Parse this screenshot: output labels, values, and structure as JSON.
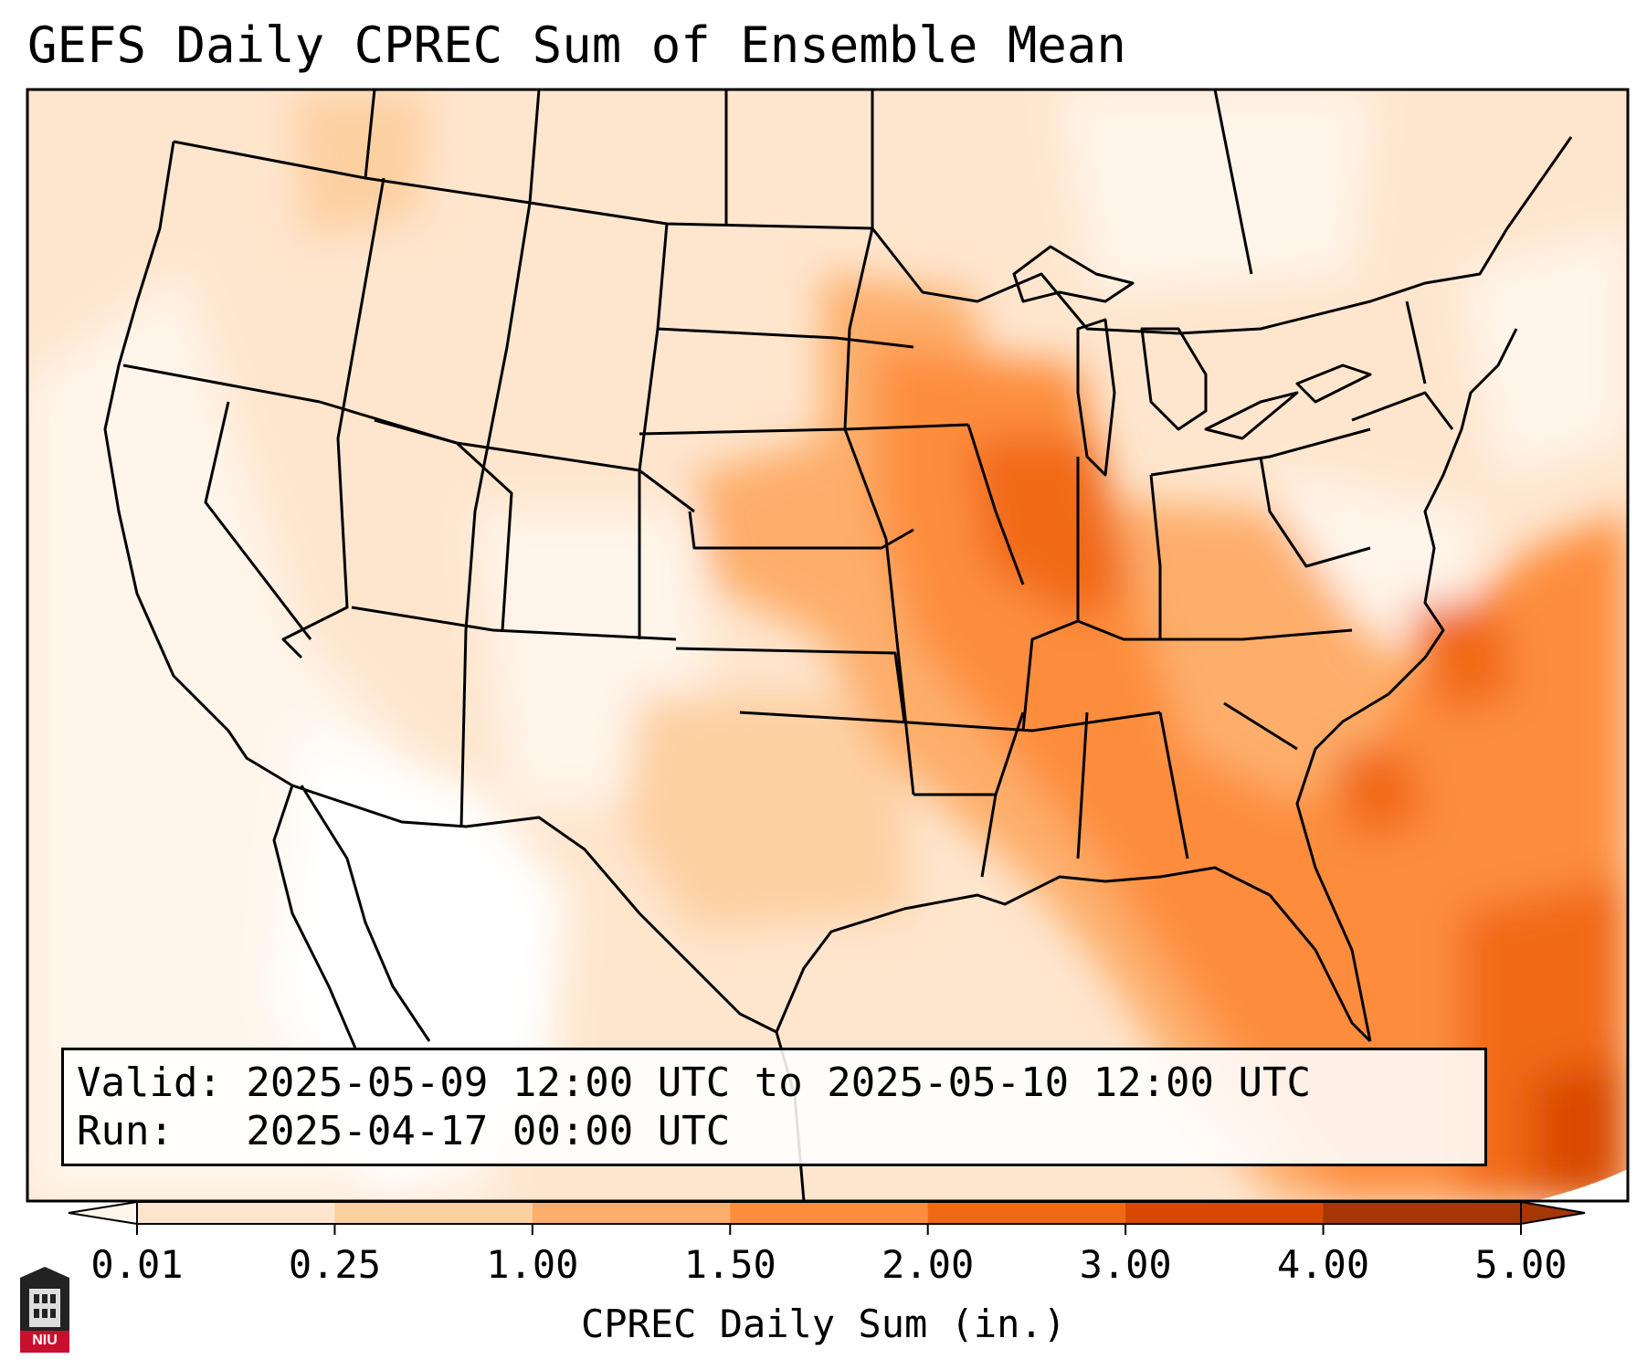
{
  "title": "GEFS Daily CPREC Sum of Ensemble Mean",
  "legend": {
    "valid_line": "Valid: 2025-05-09 12:00 UTC to 2025-05-10 12:00 UTC",
    "run_line": "Run:   2025-04-17 00:00 UTC"
  },
  "colorbar": {
    "title": "CPREC Daily Sum (in.)",
    "ticks": [
      "0.01",
      "0.25",
      "1.00",
      "1.50",
      "2.00",
      "3.00",
      "4.00",
      "5.00"
    ],
    "colors": [
      "#fff5eb",
      "#fee6ce",
      "#fdd0a2",
      "#fdae6b",
      "#fd8d3c",
      "#f16913",
      "#d94801",
      "#a63603"
    ]
  },
  "logo": {
    "text": "NIU",
    "icon": "niu-logo-icon"
  },
  "colors": {
    "border": "#000000",
    "ocean_pale": "#fff5eb"
  }
}
